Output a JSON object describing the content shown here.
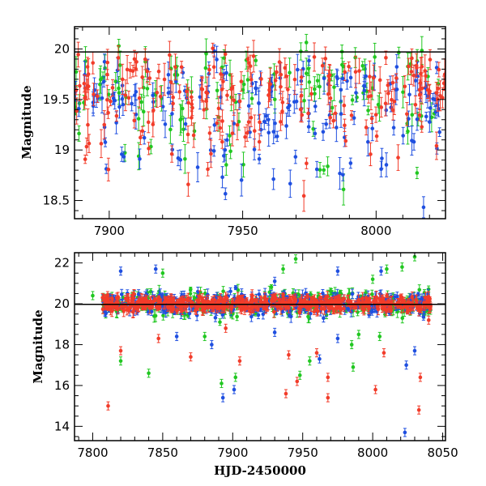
{
  "chart_data": [
    {
      "type": "scatter",
      "panel": "top",
      "title": "",
      "xlabel": "",
      "ylabel": "Magnitude",
      "xlim": [
        7887,
        8026
      ],
      "ylim": [
        20.22,
        18.32
      ],
      "y_inverted": true,
      "reference_line": 19.97,
      "x_ticks": [
        7900,
        7950,
        8000
      ],
      "x_tick_labels": [
        "7900",
        "7950",
        "8000"
      ],
      "y_ticks": [
        18.5,
        19,
        19.5,
        20
      ],
      "y_tick_labels": [
        "18.5",
        "19",
        "19.5",
        "20"
      ],
      "series": [
        {
          "color": "#21c721",
          "x_range": [
            7887,
            8026
          ],
          "baseline": 19.9,
          "scatter": 0.5,
          "n": 120,
          "note_hidden": true
        },
        {
          "color": "#1f4fe0",
          "x_range": [
            7887,
            8026
          ],
          "baseline": 19.8,
          "scatter": 0.55,
          "n": 170
        },
        {
          "color": "#f23c2a",
          "x_range": [
            7887,
            8026
          ],
          "baseline": 19.85,
          "scatter": 0.45,
          "n": 210
        }
      ]
    },
    {
      "type": "scatter",
      "panel": "bottom",
      "title": "",
      "xlabel": "HJD-2450000",
      "ylabel": "Magnitude",
      "xlim": [
        7787,
        8052
      ],
      "ylim": [
        22.5,
        13.3
      ],
      "y_inverted": true,
      "reference_line": 19.97,
      "x_ticks": [
        7800,
        7850,
        7900,
        7950,
        8000,
        8050
      ],
      "x_tick_labels": [
        "7800",
        "7850",
        "7900",
        "7950",
        "8000",
        "8050"
      ],
      "y_ticks": [
        14,
        16,
        18,
        20,
        22
      ],
      "y_tick_labels": [
        "14",
        "16",
        "18",
        "20",
        "22"
      ],
      "outliers": {
        "red": [
          [
            7811,
            15.0
          ],
          [
            7938,
            15.6
          ],
          [
            7946,
            16.2
          ],
          [
            7968,
            15.4
          ],
          [
            7968,
            16.4
          ],
          [
            8002,
            15.8
          ],
          [
            8033,
            14.8
          ],
          [
            8034,
            16.4
          ],
          [
            7820,
            17.7
          ],
          [
            7847,
            18.3
          ],
          [
            7870,
            17.4
          ],
          [
            7895,
            18.8
          ],
          [
            7905,
            17.2
          ],
          [
            7940,
            17.5
          ],
          [
            7960,
            17.6
          ],
          [
            8008,
            17.6
          ],
          [
            8040,
            19.2
          ]
        ],
        "blue": [
          [
            7893,
            15.4
          ],
          [
            7901,
            15.8
          ],
          [
            8023,
            13.7
          ],
          [
            8024,
            17.0
          ],
          [
            7962,
            17.3
          ],
          [
            8030,
            17.7
          ],
          [
            7860,
            18.4
          ],
          [
            7885,
            18.0
          ],
          [
            7930,
            18.6
          ],
          [
            7975,
            18.3
          ],
          [
            7820,
            21.6
          ],
          [
            7845,
            21.7
          ],
          [
            7930,
            21.1
          ],
          [
            7975,
            21.6
          ],
          [
            8006,
            21.6
          ]
        ],
        "green": [
          [
            7840,
            16.6
          ],
          [
            7820,
            17.2
          ],
          [
            7892,
            16.1
          ],
          [
            7902,
            16.4
          ],
          [
            7948,
            16.5
          ],
          [
            7986,
            16.9
          ],
          [
            7955,
            17.2
          ],
          [
            7880,
            18.4
          ],
          [
            7985,
            18.0
          ],
          [
            7990,
            18.5
          ],
          [
            8005,
            18.4
          ],
          [
            7850,
            21.5
          ],
          [
            7936,
            21.7
          ],
          [
            7945,
            22.2
          ],
          [
            8000,
            21.2
          ],
          [
            8010,
            21.7
          ],
          [
            8021,
            21.8
          ],
          [
            8030,
            22.3
          ],
          [
            7800,
            20.4
          ]
        ]
      },
      "series": [
        {
          "color": "#21c721",
          "x_range": [
            7807,
            8042
          ],
          "baseline": 20.0,
          "scatter": 0.45,
          "n": 300
        },
        {
          "color": "#1f4fe0",
          "x_range": [
            7807,
            8042
          ],
          "baseline": 20.0,
          "scatter": 0.4,
          "n": 330
        },
        {
          "color": "#f23c2a",
          "x_range": [
            7807,
            8042
          ],
          "baseline": 20.0,
          "scatter": 0.25,
          "n": 520
        }
      ]
    }
  ]
}
